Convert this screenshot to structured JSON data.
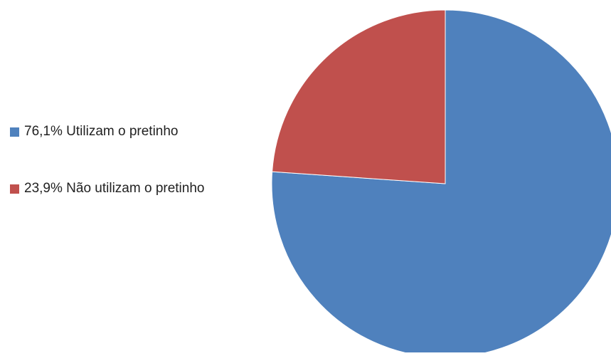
{
  "chart_data": {
    "type": "pie",
    "title": "",
    "series": [
      {
        "name": "",
        "values": [
          76.1,
          23.9
        ]
      }
    ],
    "categories": [
      "Utilizam o pretinho",
      "Não utilizam o pretinho"
    ],
    "colors": [
      "#4f81bd",
      "#c0504d"
    ],
    "legend_position": "left",
    "legend": [
      {
        "label": "76,1% Utilizam o pretinho",
        "color": "#4f81bd"
      },
      {
        "label": "23,9% Não utilizam o pretinho",
        "color": "#c0504d"
      }
    ]
  }
}
